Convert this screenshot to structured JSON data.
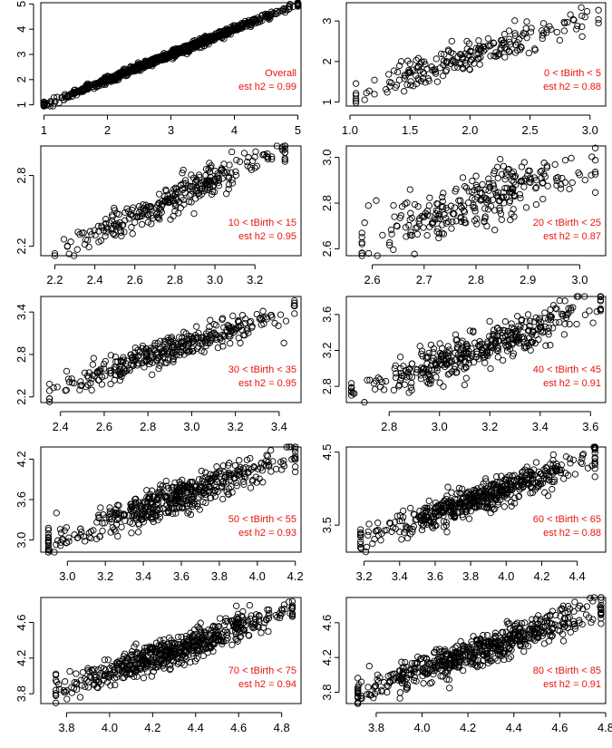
{
  "chart_data": [
    {
      "type": "scatter",
      "annotation": [
        "Overall",
        "est h2 = 0.99"
      ],
      "xlim": [
        0.95,
        5.05
      ],
      "ylim": [
        0.95,
        5.05
      ],
      "xticks": [
        1,
        2,
        3,
        4,
        5
      ],
      "yticks": [
        1,
        2,
        3,
        4,
        5
      ],
      "x_data_range": [
        1.0,
        5.0
      ],
      "slope": 1.0,
      "noise": 0.07,
      "n_points": 900,
      "grid": false
    },
    {
      "type": "scatter",
      "annotation": [
        "0 < tBirth < 5",
        "est h2 = 0.88"
      ],
      "xlim": [
        0.97,
        3.13
      ],
      "ylim": [
        0.9,
        3.45
      ],
      "xticks": [
        1.0,
        1.5,
        2.0,
        2.5,
        3.0
      ],
      "yticks": [
        1.0,
        2.0,
        3.0
      ],
      "x_data_range": [
        1.05,
        3.07
      ],
      "slope": 0.95,
      "noise": 0.2,
      "n_points": 220,
      "grid": false
    },
    {
      "type": "scatter",
      "annotation": [
        "10 < tBirth < 15",
        "est h2 = 0.95"
      ],
      "xlim": [
        2.13,
        3.43
      ],
      "ylim": [
        2.12,
        3.05
      ],
      "xticks": [
        2.2,
        2.4,
        2.6,
        2.8,
        3.0,
        3.2
      ],
      "yticks": [
        2.2,
        2.8
      ],
      "x_data_range": [
        2.2,
        3.35
      ],
      "slope": 0.75,
      "noise": 0.07,
      "n_points": 300,
      "grid": false
    },
    {
      "type": "scatter",
      "annotation": [
        "20 < tBirth < 25",
        "est h2 = 0.87"
      ],
      "xlim": [
        2.55,
        3.05
      ],
      "ylim": [
        2.57,
        3.05
      ],
      "xticks": [
        2.6,
        2.7,
        2.8,
        2.9,
        3.0
      ],
      "yticks": [
        2.6,
        2.8,
        3.0
      ],
      "x_data_range": [
        2.58,
        3.03
      ],
      "slope": 0.8,
      "noise": 0.06,
      "n_points": 280,
      "grid": false
    },
    {
      "type": "scatter",
      "annotation": [
        "30 < tBirth < 35",
        "est h2 = 0.95"
      ],
      "xlim": [
        2.31,
        3.5
      ],
      "ylim": [
        2.12,
        3.62
      ],
      "xticks": [
        2.4,
        2.6,
        2.8,
        3.0,
        3.2,
        3.4
      ],
      "yticks": [
        2.2,
        2.8,
        3.4
      ],
      "x_data_range": [
        2.35,
        3.47
      ],
      "slope": 1.05,
      "noise": 0.1,
      "n_points": 350,
      "grid": false
    },
    {
      "type": "scatter",
      "annotation": [
        "40 < tBirth < 45",
        "est h2 = 0.91"
      ],
      "xlim": [
        2.63,
        3.66
      ],
      "ylim": [
        2.62,
        3.8
      ],
      "xticks": [
        2.8,
        3.0,
        3.2,
        3.4,
        3.6
      ],
      "yticks": [
        2.8,
        3.2,
        3.6
      ],
      "x_data_range": [
        2.65,
        3.64
      ],
      "slope": 1.0,
      "noise": 0.1,
      "n_points": 400,
      "grid": false
    },
    {
      "type": "scatter",
      "annotation": [
        "50 < tBirth < 55",
        "est h2 = 0.93"
      ],
      "xlim": [
        2.86,
        4.23
      ],
      "ylim": [
        2.82,
        4.38
      ],
      "xticks": [
        3.0,
        3.2,
        3.4,
        3.6,
        3.8,
        4.0,
        4.2
      ],
      "yticks": [
        3.0,
        3.6,
        4.2
      ],
      "x_data_range": [
        2.9,
        4.2
      ],
      "slope": 1.0,
      "noise": 0.12,
      "n_points": 500,
      "grid": false
    },
    {
      "type": "scatter",
      "annotation": [
        "60 < tBirth < 65",
        "est h2 = 0.88"
      ],
      "xlim": [
        3.1,
        4.56
      ],
      "ylim": [
        3.13,
        4.57
      ],
      "xticks": [
        3.2,
        3.4,
        3.6,
        3.8,
        4.0,
        4.2,
        4.4
      ],
      "yticks": [
        3.5,
        4.5
      ],
      "x_data_range": [
        3.18,
        4.5
      ],
      "slope": 0.85,
      "noise": 0.1,
      "n_points": 550,
      "grid": false
    },
    {
      "type": "scatter",
      "annotation": [
        "70 < tBirth < 75",
        "est h2 = 0.94"
      ],
      "xlim": [
        3.68,
        4.89
      ],
      "ylim": [
        3.69,
        4.88
      ],
      "xticks": [
        3.8,
        4.0,
        4.2,
        4.4,
        4.6,
        4.8
      ],
      "yticks": [
        3.8,
        4.2,
        4.6
      ],
      "x_data_range": [
        3.75,
        4.85
      ],
      "slope": 0.85,
      "noise": 0.08,
      "n_points": 600,
      "grid": false
    },
    {
      "type": "scatter",
      "annotation": [
        "80 < tBirth < 85",
        "est h2 = 0.91"
      ],
      "xlim": [
        3.67,
        4.8
      ],
      "ylim": [
        3.67,
        4.89
      ],
      "xticks": [
        3.8,
        4.0,
        4.2,
        4.4,
        4.6,
        4.8
      ],
      "xtick_labels": [
        "3.8",
        "4.0",
        "4.2",
        "4.4",
        "4.6",
        "4.8"
      ],
      "yticks": [
        3.8,
        4.2,
        4.6
      ],
      "x_data_range": [
        3.72,
        4.78
      ],
      "slope": 0.9,
      "noise": 0.09,
      "n_points": 600,
      "grid": false
    }
  ],
  "colors": {
    "points": "#000000",
    "annotation": "#e8140e",
    "axis": "#000000",
    "background": "#ffffff"
  }
}
